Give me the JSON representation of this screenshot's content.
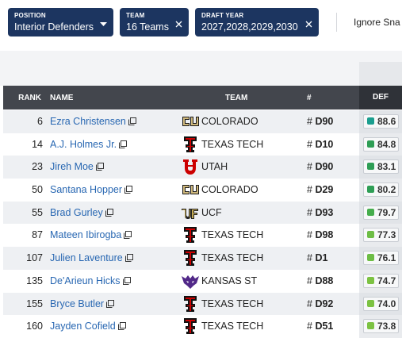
{
  "filters": [
    {
      "label": "POSITION",
      "value": "Interior Defenders"
    },
    {
      "label": "TEAM",
      "value": "16 Teams"
    },
    {
      "label": "DRAFT YEAR",
      "value": "2027,2028,2029,2030"
    }
  ],
  "toggle": "Ignore Sna",
  "table": {
    "columns": [
      "RANK",
      "NAME",
      "TEAM",
      "#",
      "DEF"
    ],
    "number_symbol": "#",
    "rows": [
      {
        "rank": 6,
        "name": "Ezra Christensen",
        "team": "COLORADO",
        "number": "D90",
        "grade": 88.6
      },
      {
        "rank": 14,
        "name": "A.J. Holmes Jr.",
        "team": "TEXAS TECH",
        "number": "D10",
        "grade": 84.8
      },
      {
        "rank": 23,
        "name": "Jireh Moe",
        "team": "UTAH",
        "number": "D90",
        "grade": 83.1
      },
      {
        "rank": 50,
        "name": "Santana Hopper",
        "team": "COLORADO",
        "number": "D29",
        "grade": 80.2
      },
      {
        "rank": 55,
        "name": "Brad Gurley",
        "team": "UCF",
        "number": "D93",
        "grade": 79.7
      },
      {
        "rank": 87,
        "name": "Mateen Ibirogba",
        "team": "TEXAS TECH",
        "number": "D98",
        "grade": 77.3
      },
      {
        "rank": 107,
        "name": "Julien Laventure",
        "team": "TEXAS TECH",
        "number": "D1",
        "grade": 76.1
      },
      {
        "rank": 135,
        "name": "De'Arieun Hicks",
        "team": "KANSAS ST",
        "number": "D88",
        "grade": 74.7
      },
      {
        "rank": 155,
        "name": "Bryce Butler",
        "team": "TEXAS TECH",
        "number": "D92",
        "grade": 74.0
      },
      {
        "rank": 160,
        "name": "Jayden Cofield",
        "team": "TEXAS TECH",
        "number": "D51",
        "grade": 73.8
      }
    ]
  }
}
